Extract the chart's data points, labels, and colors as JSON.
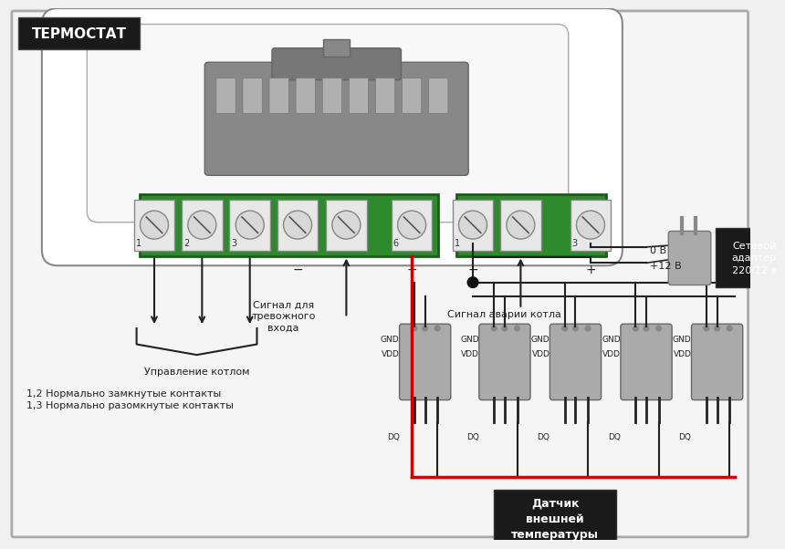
{
  "bg_color": "#f0f0f0",
  "title_text": "ТЕРМОСТАТ",
  "title_bg": "#1a1a1a",
  "title_fg": "#ffffff",
  "adapter_label": "Сетевой\nадаптер\n220/12 в",
  "boiler_control": "Управление котлом",
  "signal_alarm": "Сигнал для\nтревожного\nвхода",
  "boiler_alarm": "Сигнал аварии котла",
  "notes": "1,2 Нормально замкнутые контакты\n1,3 Нормально разомкнутые контакты",
  "sensor_label": "Датчик\nвнешней\nтемпературы",
  "v0_label": "0 В",
  "v12_label": "+12 В",
  "gnd_label": "GND",
  "vdd_label": "VDD",
  "dq_label": "DQ",
  "wire_red": "#cc0000",
  "wire_black": "#222222",
  "green_fill": "#2d8a2d",
  "green_edge": "#1a5c1a",
  "terminal_fill": "#e8e8e8",
  "terminal_edge": "#888888",
  "sensor_fill": "#aaaaaa",
  "sensor_edge": "#666666",
  "adapter_fill": "#aaaaaa",
  "body_fill": "#f0f0f0",
  "body_edge": "#888888",
  "connector_fill": "#888888",
  "connector_edge": "#666666",
  "label_bg": "#1a1a1a",
  "label_fg": "#ffffff"
}
